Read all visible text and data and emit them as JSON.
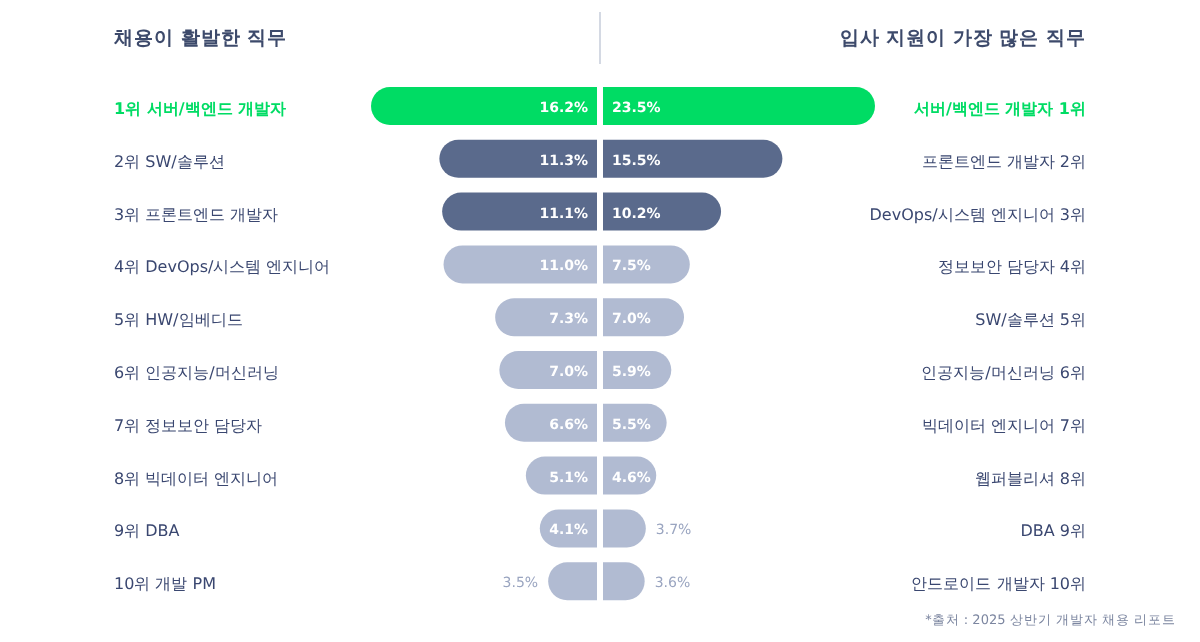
{
  "chart_data": [
    {
      "type": "bar",
      "orientation": "horizontal",
      "title": "채용이 활발한 직무",
      "categories": [
        "1위 서버/백엔드 개발자",
        "2위 SW/솔루션",
        "3위 프론트엔드 개발자",
        "4위 DevOps/시스템 엔지니어",
        "5위 HW/임베디드",
        "6위 인공지능/머신러닝",
        "7위 정보보안 담당자",
        "8위 빅데이터 엔지니어",
        "9위 DBA",
        "10위 개발 PM"
      ],
      "values": [
        16.2,
        11.3,
        11.1,
        11.0,
        7.3,
        7.0,
        6.6,
        5.1,
        4.1,
        3.5
      ],
      "value_labels": [
        "16.2%",
        "11.3%",
        "11.1%",
        "11.0%",
        "7.3%",
        "7.0%",
        "6.6%",
        "5.1%",
        "4.1%",
        "3.5%"
      ],
      "colors": [
        "#00dc64",
        "#5a6a8c",
        "#5a6a8c",
        "#b1bbd2",
        "#b1bbd2",
        "#b1bbd2",
        "#b1bbd2",
        "#b1bbd2",
        "#b1bbd2",
        "#b1bbd2"
      ]
    },
    {
      "type": "bar",
      "orientation": "horizontal",
      "title": "입사 지원이 가장 많은 직무",
      "categories": [
        "서버/백엔드 개발자 1위",
        "프론트엔드 개발자 2위",
        "DevOps/시스템 엔지니어 3위",
        "정보보안 담당자 4위",
        "SW/솔루션 5위",
        "인공지능/머신러닝 6위",
        "빅데이터 엔지니어 7위",
        "웹퍼블리셔 8위",
        "DBA 9위",
        "안드로이드 개발자 10위"
      ],
      "values": [
        23.5,
        15.5,
        10.2,
        7.5,
        7.0,
        5.9,
        5.5,
        4.6,
        3.7,
        3.6
      ],
      "value_labels": [
        "23.5%",
        "15.5%",
        "10.2%",
        "7.5%",
        "7.0%",
        "5.9%",
        "5.5%",
        "4.6%",
        "3.7%",
        "3.6%"
      ],
      "colors": [
        "#00dc64",
        "#5a6a8c",
        "#5a6a8c",
        "#b1bbd2",
        "#b1bbd2",
        "#b1bbd2",
        "#b1bbd2",
        "#b1bbd2",
        "#b1bbd2",
        "#b1bbd2"
      ],
      "annotations": [
        "*출처 : 2025 상반기 개발자 채용 리포트"
      ]
    }
  ]
}
